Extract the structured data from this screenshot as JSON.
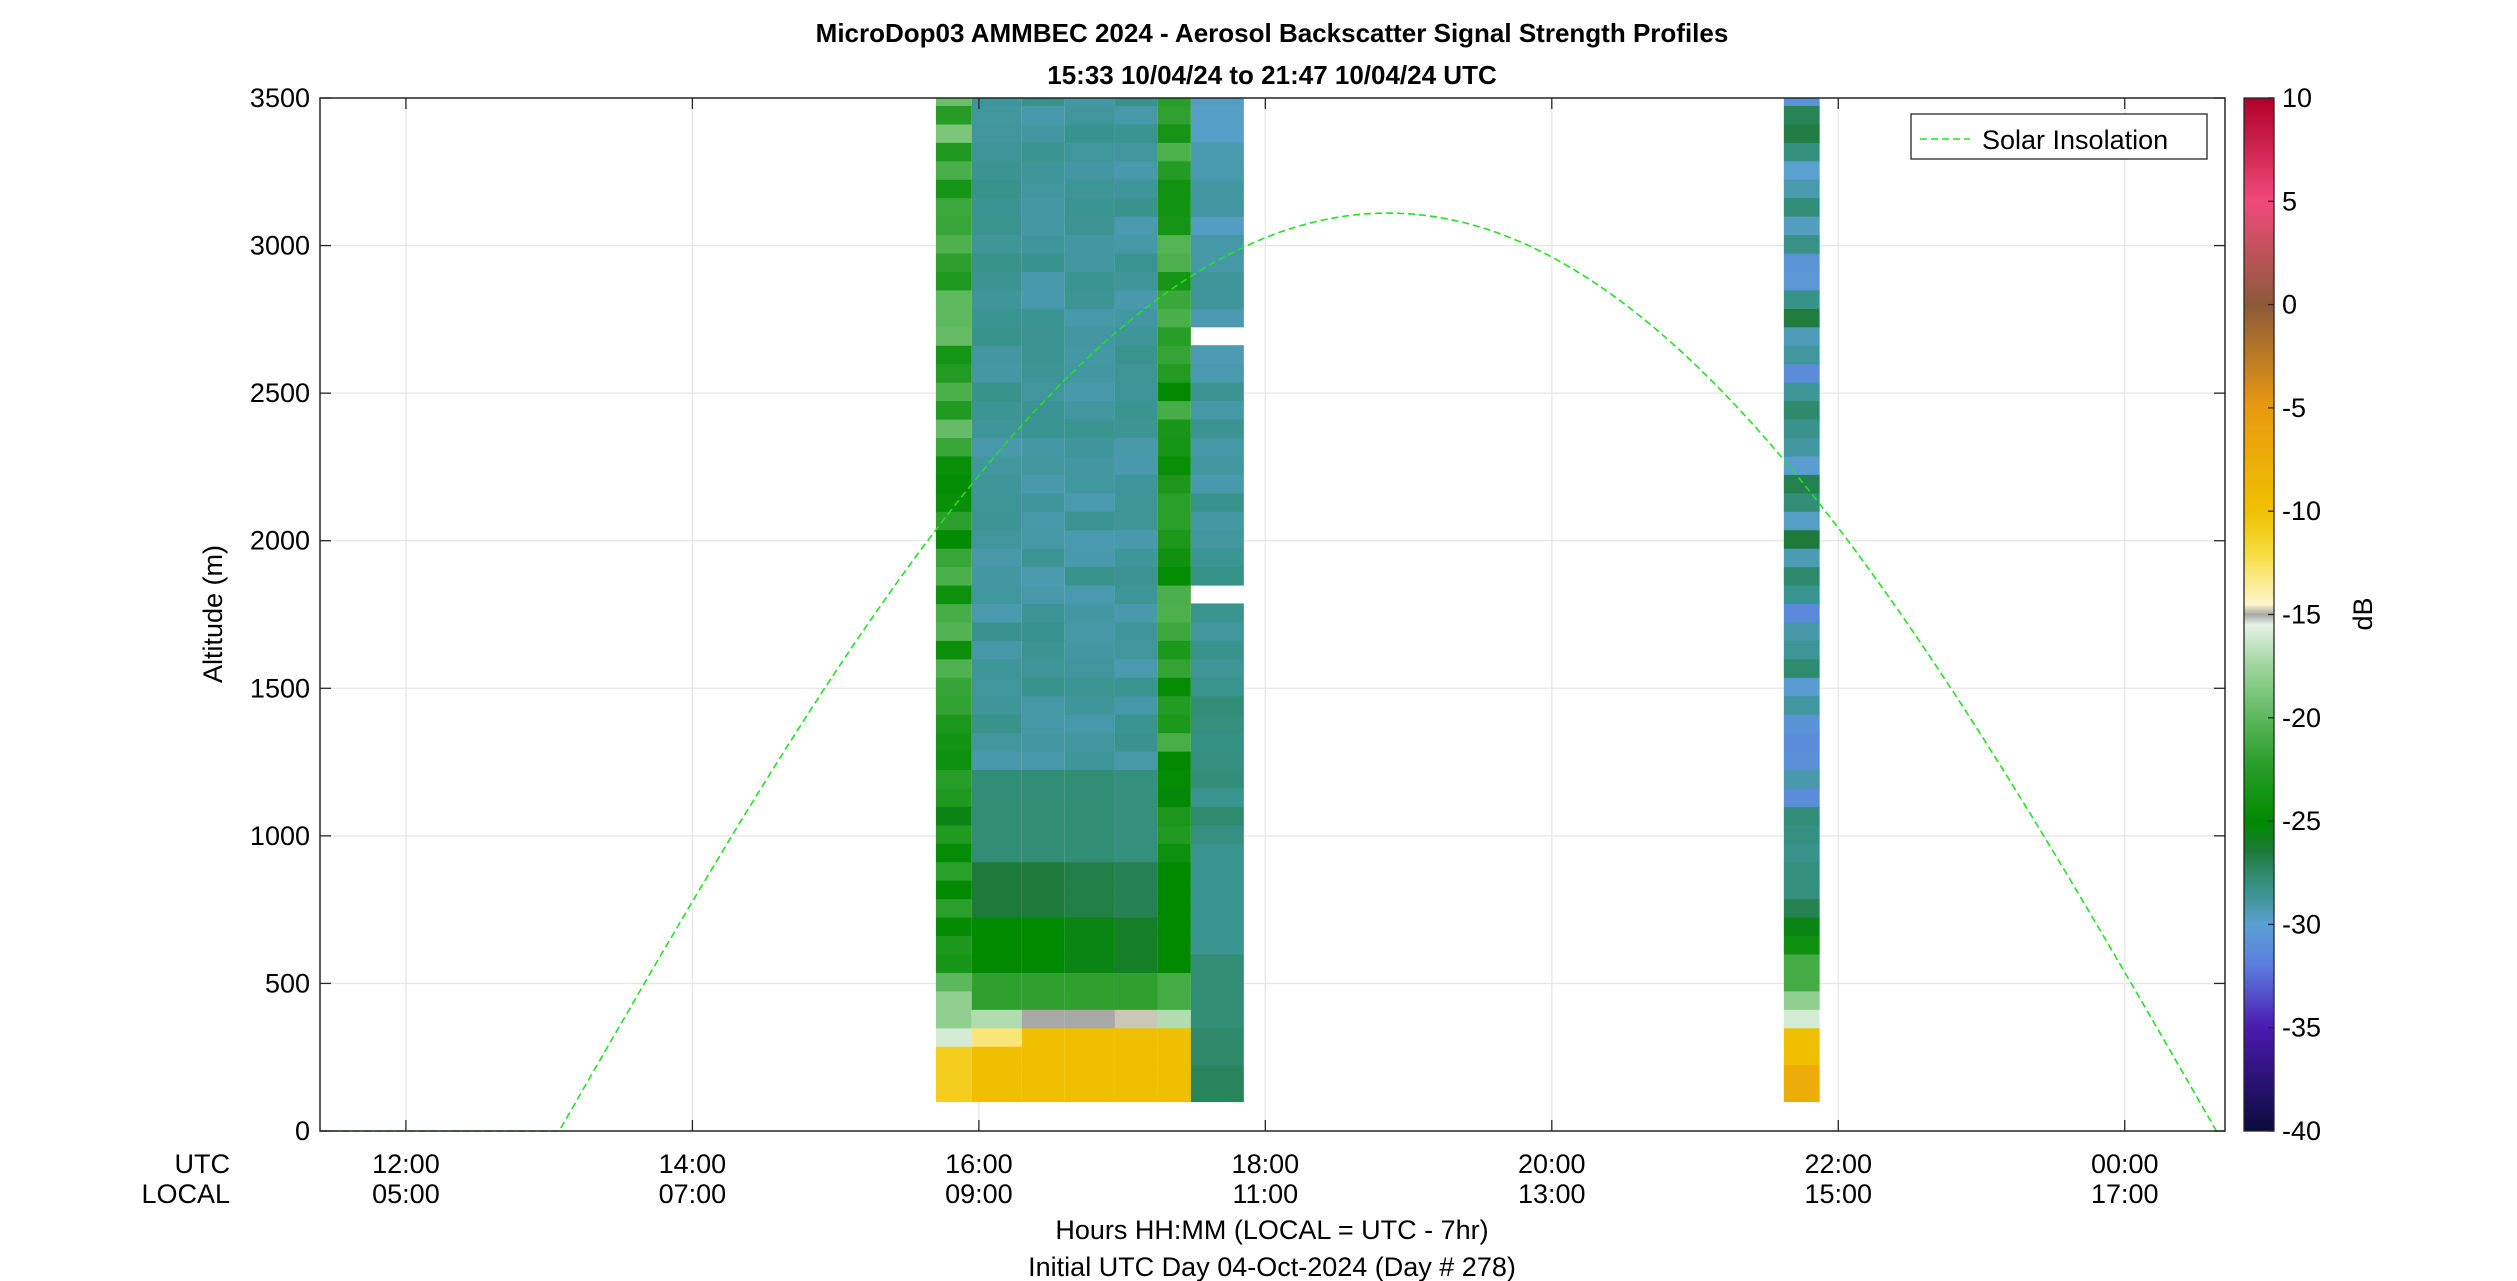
{
  "chart_data": {
    "type": "heatmap",
    "title": "MicroDop03 AMMBEC 2024 - Aerosol Backscatter Signal Strength Profiles",
    "subtitle": "15:33 10/04/24 to 21:47 10/04/24  UTC",
    "ylabel": "Altitude (m)",
    "xlabel": "Hours HH:MM  (LOCAL = UTC - 7hr)",
    "xlabel2": "Initial UTC Day 04-Oct-2024 (Day # 278)",
    "row_label_utc": "UTC",
    "row_label_local": "LOCAL",
    "x_axis_hours_utc": [
      11.4,
      24.7
    ],
    "ylim": [
      0,
      3500
    ],
    "yticks": [
      0,
      500,
      1000,
      1500,
      2000,
      2500,
      3000,
      3500
    ],
    "xticks": [
      {
        "hour": 12,
        "utc": "12:00",
        "local": "05:00"
      },
      {
        "hour": 14,
        "utc": "14:00",
        "local": "07:00"
      },
      {
        "hour": 16,
        "utc": "16:00",
        "local": "09:00"
      },
      {
        "hour": 18,
        "utc": "18:00",
        "local": "11:00"
      },
      {
        "hour": 20,
        "utc": "20:00",
        "local": "13:00"
      },
      {
        "hour": 22,
        "utc": "22:00",
        "local": "15:00"
      },
      {
        "hour": 24,
        "utc": "00:00",
        "local": "17:00"
      }
    ],
    "grid": true,
    "legend": {
      "label": "Solar Insolation",
      "position": "top-right"
    },
    "colorbar": {
      "label": "dB",
      "range": [
        -40,
        10
      ],
      "ticks": [
        10,
        5,
        0,
        -5,
        -10,
        -15,
        -20,
        -25,
        -30,
        -35,
        -40
      ]
    },
    "colorscale": [
      {
        "db": -40,
        "color": "#0b0b3b"
      },
      {
        "db": -35,
        "color": "#4b1ab0"
      },
      {
        "db": -32,
        "color": "#5b7de0"
      },
      {
        "db": -30,
        "color": "#5aa0d0"
      },
      {
        "db": -28.5,
        "color": "#3a9490"
      },
      {
        "db": -27.5,
        "color": "#2e8a6a"
      },
      {
        "db": -26.5,
        "color": "#1e7a3a"
      },
      {
        "db": -25,
        "color": "#008a00"
      },
      {
        "db": -22,
        "color": "#2ea02e"
      },
      {
        "db": -20,
        "color": "#5cb85c"
      },
      {
        "db": -17.5,
        "color": "#9ed59e"
      },
      {
        "db": -15.5,
        "color": "#e6f2e6"
      },
      {
        "db": -15,
        "color": "#a8a8a8"
      },
      {
        "db": -14.5,
        "color": "#fff6cc"
      },
      {
        "db": -12,
        "color": "#f5dc3c"
      },
      {
        "db": -10,
        "color": "#f0c000"
      },
      {
        "db": -5,
        "color": "#e89a10"
      },
      {
        "db": 0,
        "color": "#8c5a3a"
      },
      {
        "db": 5,
        "color": "#f04a7a"
      },
      {
        "db": 10,
        "color": "#b0002a"
      }
    ],
    "solar_insolation": {
      "rise_hour": 13.07,
      "set_hour": 24.64,
      "peak_altitude_m": 3110,
      "line_color": "#22e022"
    },
    "profiles": [
      {
        "t0": 15.7,
        "t1": 15.95,
        "alt_max": 3500,
        "db_base": -23.5,
        "db_top": -21.0,
        "surface_db": -11,
        "surface_top": 280,
        "transition": [
          {
            "alt": 380,
            "db": -16
          },
          {
            "alt": 460,
            "db": -18
          },
          {
            "alt": 560,
            "db": -20
          }
        ]
      },
      {
        "t0": 15.95,
        "t1": 16.3,
        "alt_max": 3500,
        "db_base": -28.8,
        "db_top": -28.8,
        "surface_db": -10,
        "surface_top": 280,
        "transition": [
          {
            "alt": 340,
            "db": -13
          },
          {
            "alt": 420,
            "db": -17
          },
          {
            "alt": 520,
            "db": -22
          },
          {
            "alt": 700,
            "db": -25
          },
          {
            "alt": 900,
            "db": -26.5
          },
          {
            "alt": 1200,
            "db": -27.8
          }
        ]
      },
      {
        "t0": 16.3,
        "t1": 16.6,
        "alt_max": 3500,
        "db_base": -28.8,
        "db_top": -28.8,
        "surface_db": -10,
        "surface_top": 340,
        "transition": [
          {
            "alt": 420,
            "db": -15
          },
          {
            "alt": 520,
            "db": -22
          },
          {
            "alt": 700,
            "db": -25
          },
          {
            "alt": 900,
            "db": -26.5
          },
          {
            "alt": 1200,
            "db": -27.8
          }
        ]
      },
      {
        "t0": 16.6,
        "t1": 16.95,
        "alt_max": 3500,
        "db_base": -28.8,
        "db_top": -28.8,
        "surface_db": -10,
        "surface_top": 340,
        "transition": [
          {
            "alt": 420,
            "db": -15
          },
          {
            "alt": 520,
            "db": -22
          },
          {
            "alt": 700,
            "db": -25.5
          },
          {
            "alt": 900,
            "db": -26.8
          },
          {
            "alt": 1200,
            "db": -27.8
          }
        ]
      },
      {
        "t0": 16.95,
        "t1": 17.25,
        "alt_max": 3500,
        "db_base": -28.8,
        "db_top": -28.8,
        "surface_db": -10,
        "surface_top": 340,
        "transition": [
          {
            "alt": 420,
            "db": -14.8
          },
          {
            "alt": 520,
            "db": -22
          },
          {
            "alt": 700,
            "db": -26
          },
          {
            "alt": 900,
            "db": -27
          },
          {
            "alt": 1200,
            "db": -28
          }
        ]
      },
      {
        "t0": 17.25,
        "t1": 17.48,
        "alt_max": 3500,
        "db_base": -23.0,
        "db_top": -22.0,
        "surface_db": -10,
        "surface_top": 340,
        "transition": [
          {
            "alt": 440,
            "db": -17
          },
          {
            "alt": 560,
            "db": -21
          },
          {
            "alt": 900,
            "db": -25
          }
        ]
      },
      {
        "t0": 17.48,
        "t1": 17.85,
        "alt_max": 3500,
        "db_base": -28.0,
        "db_top": -29.5,
        "surface_db": -27.2,
        "surface_top": 230,
        "transition": [
          {
            "alt": 340,
            "db": -27.5
          },
          {
            "alt": 600,
            "db": -27.8
          },
          {
            "alt": 1000,
            "db": -28.5
          }
        ],
        "gaps": [
          [
            1780,
            1840
          ],
          [
            2640,
            2700
          ]
        ]
      },
      {
        "t0": 21.62,
        "t1": 21.87,
        "alt_max": 3500,
        "db_base": -28.8,
        "db_top": -28.8,
        "surface_db": -7.5,
        "surface_top": 250,
        "transition": [
          {
            "alt": 320,
            "db": -10
          },
          {
            "alt": 380,
            "db": -13
          },
          {
            "alt": 440,
            "db": -16
          },
          {
            "alt": 500,
            "db": -18
          },
          {
            "alt": 580,
            "db": -21
          },
          {
            "alt": 640,
            "db": -24
          },
          {
            "alt": 710,
            "db": -25.5
          },
          {
            "alt": 780,
            "db": -27
          },
          {
            "alt": 900,
            "db": -28
          }
        ]
      }
    ]
  }
}
